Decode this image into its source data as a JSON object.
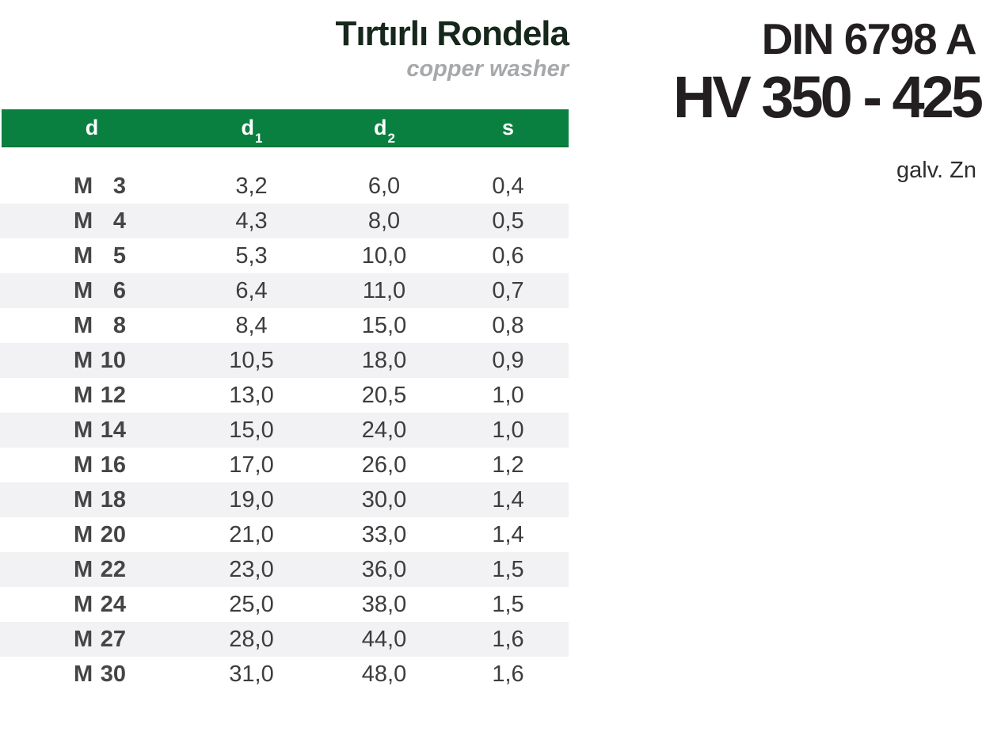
{
  "header": {
    "title": "Tırtırlı Rondela",
    "subtitle": "copper washer"
  },
  "right_panel": {
    "standard": "DIN 6798 A",
    "hardness": "HV 350 - 425",
    "coating": "galv. Zn"
  },
  "table": {
    "columns": [
      {
        "label": "d",
        "sub": ""
      },
      {
        "label": "d",
        "sub": "1"
      },
      {
        "label": "d",
        "sub": "2"
      },
      {
        "label": "s",
        "sub": ""
      }
    ],
    "rows": [
      {
        "prefix": "M",
        "size": "3",
        "d1": "3,2",
        "d2": "6,0",
        "s": "0,4"
      },
      {
        "prefix": "M",
        "size": "4",
        "d1": "4,3",
        "d2": "8,0",
        "s": "0,5"
      },
      {
        "prefix": "M",
        "size": "5",
        "d1": "5,3",
        "d2": "10,0",
        "s": "0,6"
      },
      {
        "prefix": "M",
        "size": "6",
        "d1": "6,4",
        "d2": "11,0",
        "s": "0,7"
      },
      {
        "prefix": "M",
        "size": "8",
        "d1": "8,4",
        "d2": "15,0",
        "s": "0,8"
      },
      {
        "prefix": "M",
        "size": "10",
        "d1": "10,5",
        "d2": "18,0",
        "s": "0,9"
      },
      {
        "prefix": "M",
        "size": "12",
        "d1": "13,0",
        "d2": "20,5",
        "s": "1,0"
      },
      {
        "prefix": "M",
        "size": "14",
        "d1": "15,0",
        "d2": "24,0",
        "s": "1,0"
      },
      {
        "prefix": "M",
        "size": "16",
        "d1": "17,0",
        "d2": "26,0",
        "s": "1,2"
      },
      {
        "prefix": "M",
        "size": "18",
        "d1": "19,0",
        "d2": "30,0",
        "s": "1,4"
      },
      {
        "prefix": "M",
        "size": "20",
        "d1": "21,0",
        "d2": "33,0",
        "s": "1,4"
      },
      {
        "prefix": "M",
        "size": "22",
        "d1": "23,0",
        "d2": "36,0",
        "s": "1,5"
      },
      {
        "prefix": "M",
        "size": "24",
        "d1": "25,0",
        "d2": "38,0",
        "s": "1,5"
      },
      {
        "prefix": "M",
        "size": "27",
        "d1": "28,0",
        "d2": "44,0",
        "s": "1,6"
      },
      {
        "prefix": "M",
        "size": "30",
        "d1": "31,0",
        "d2": "48,0",
        "s": "1,6"
      }
    ]
  },
  "colors": {
    "header_green": "#0a8040",
    "row_stripe": "#f2f2f4",
    "title_dark_green": "#16271c",
    "subtitle_gray": "#a6a8ab",
    "text_dark": "#3d3d3f",
    "heading_black": "#231f20"
  }
}
